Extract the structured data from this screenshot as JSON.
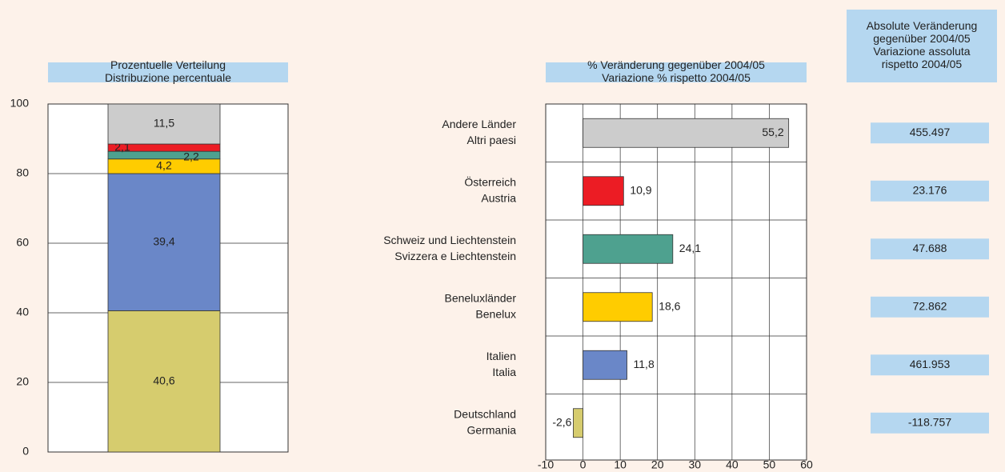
{
  "chart_data": [
    {
      "type": "stacked-bar",
      "title": [
        "Prozentuelle Verteilung",
        "Distribuzione percentuale"
      ],
      "ylim": [
        0,
        100
      ],
      "yticks": [
        0,
        20,
        40,
        60,
        80,
        100
      ],
      "grid": true,
      "series": [
        {
          "color": "#d6cc6e",
          "values": [
            40.6
          ],
          "value_labels": [
            "40,6"
          ]
        },
        {
          "color": "#6a87c8",
          "values": [
            39.4
          ],
          "value_labels": [
            "39,4"
          ]
        },
        {
          "color": "#ffcc00",
          "values": [
            4.2
          ],
          "value_labels": [
            "4,2"
          ]
        },
        {
          "color": "#4ea18f",
          "values": [
            2.2
          ],
          "value_labels": [
            "2,2"
          ]
        },
        {
          "color": "#ec1c24",
          "values": [
            2.1
          ],
          "value_labels": [
            "2,1"
          ]
        },
        {
          "color": "#cccccc",
          "values": [
            11.5
          ],
          "value_labels": [
            "11,5"
          ]
        }
      ]
    },
    {
      "type": "hbar",
      "title": [
        "% Veränderung gegenüber 2004/05",
        "Variazione % rispetto 2004/05"
      ],
      "categories": [
        [
          "Andere Länder",
          "Altri paesi"
        ],
        [
          "Österreich",
          "Austria"
        ],
        [
          "Schweiz und Liechtenstein",
          "Svizzera e Liechtenstein"
        ],
        [
          "Beneluxländer",
          "Benelux"
        ],
        [
          "Italien",
          "Italia"
        ],
        [
          "Deutschland",
          "Germania"
        ]
      ],
      "values": [
        55.2,
        10.9,
        24.1,
        18.6,
        11.8,
        -2.6
      ],
      "value_labels": [
        "55,2",
        "10,9",
        "24,1",
        "18,6",
        "11,8",
        "-2,6"
      ],
      "colors": [
        "#cccccc",
        "#ec1c24",
        "#4ea18f",
        "#ffcc00",
        "#6a87c8",
        "#d6cc6e"
      ],
      "xlim": [
        -10,
        60
      ],
      "xticks": [
        -10,
        0,
        10,
        20,
        30,
        40,
        50,
        60
      ],
      "grid": true
    }
  ],
  "table": {
    "header": [
      "Absolute Veränderung",
      "gegenüber 2004/05",
      "Variazione assoluta",
      "rispetto 2004/05"
    ],
    "rows": [
      "455.497",
      "23.176",
      "47.688",
      "72.862",
      "461.953",
      "-118.757"
    ]
  }
}
